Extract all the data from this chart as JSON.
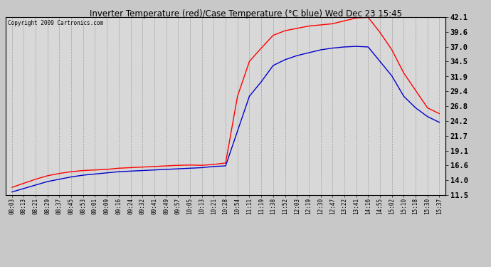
{
  "title": "Inverter Temperature (red)/Case Temperature (°C blue) Wed Dec 23 15:45",
  "copyright": "Copyright 2009 Cartronics.com",
  "yticks": [
    11.5,
    14.0,
    16.6,
    19.1,
    21.7,
    24.2,
    26.8,
    29.4,
    31.9,
    34.5,
    37.0,
    39.6,
    42.1
  ],
  "ylim": [
    11.5,
    42.1
  ],
  "bg_color": "#c8c8c8",
  "plot_bg_color": "#d8d8d8",
  "grid_color": "#888888",
  "red_color": "#ff0000",
  "blue_color": "#0000cc",
  "x_labels": [
    "08:03",
    "08:13",
    "08:21",
    "08:29",
    "08:37",
    "08:45",
    "08:53",
    "09:01",
    "09:09",
    "09:16",
    "09:24",
    "09:32",
    "09:41",
    "09:49",
    "09:57",
    "10:05",
    "10:13",
    "10:21",
    "10:28",
    "10:54",
    "11:11",
    "11:19",
    "11:38",
    "11:52",
    "12:03",
    "12:19",
    "12:30",
    "12:47",
    "13:22",
    "13:41",
    "14:16",
    "14:55",
    "15:02",
    "15:10",
    "15:18",
    "15:30",
    "15:37"
  ],
  "red_values": [
    12.8,
    13.5,
    14.2,
    14.8,
    15.2,
    15.5,
    15.7,
    15.8,
    15.9,
    16.1,
    16.2,
    16.3,
    16.4,
    16.5,
    16.6,
    16.65,
    16.6,
    16.75,
    17.0,
    28.5,
    34.5,
    36.8,
    39.0,
    39.8,
    40.2,
    40.6,
    40.8,
    41.0,
    41.5,
    42.0,
    42.1,
    39.5,
    36.5,
    32.5,
    29.5,
    26.5,
    25.5
  ],
  "blue_values": [
    12.0,
    12.6,
    13.2,
    13.8,
    14.2,
    14.6,
    14.9,
    15.1,
    15.3,
    15.5,
    15.6,
    15.7,
    15.8,
    15.9,
    16.0,
    16.1,
    16.2,
    16.4,
    16.5,
    22.5,
    28.5,
    31.0,
    33.8,
    34.8,
    35.5,
    36.0,
    36.5,
    36.8,
    37.0,
    37.1,
    37.0,
    34.5,
    32.0,
    28.5,
    26.5,
    25.0,
    24.0
  ]
}
